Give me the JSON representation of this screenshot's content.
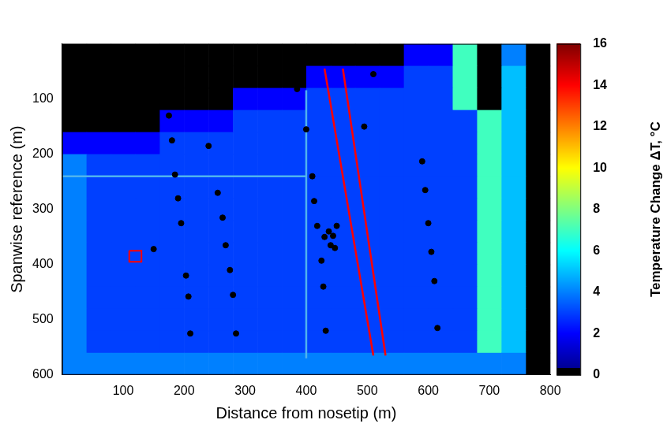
{
  "chart_data": {
    "type": "heatmap",
    "x_label": "Distance from nosetip (m)",
    "y_label": "Spanwise reference (m)",
    "xlim": [
      0,
      800
    ],
    "ylim": [
      600,
      0
    ],
    "xticks": [
      100,
      200,
      300,
      400,
      500,
      600,
      700,
      800
    ],
    "yticks": [
      100,
      200,
      300,
      400,
      500,
      600
    ],
    "grid": false,
    "cells": {
      "x": [
        20,
        60,
        100,
        140,
        180,
        220,
        260,
        300,
        340,
        380,
        420,
        460,
        500,
        540,
        580,
        620,
        660,
        700,
        740,
        780
      ],
      "y": [
        20,
        60,
        100,
        140,
        180,
        220,
        260,
        300,
        340,
        380,
        420,
        460,
        500,
        540,
        580
      ],
      "values": [
        [
          0,
          0,
          0,
          0,
          0,
          0,
          0,
          0,
          0,
          0,
          0,
          0,
          0,
          0,
          2,
          2,
          7,
          0,
          4,
          0
        ],
        [
          0,
          0,
          0,
          0,
          0,
          0,
          0,
          0,
          0,
          0,
          2,
          2,
          2,
          2,
          3,
          3,
          7,
          0,
          5,
          0
        ],
        [
          0,
          0,
          0,
          0,
          0,
          0,
          0,
          2,
          2,
          2,
          3,
          3,
          3,
          3,
          3,
          3,
          7,
          0,
          5,
          0
        ],
        [
          0,
          0,
          0,
          0,
          2,
          2,
          2,
          3,
          3,
          3,
          3,
          3,
          3,
          3,
          3,
          3,
          3,
          7,
          5,
          0
        ],
        [
          2,
          2,
          2,
          2,
          3,
          3,
          3,
          3,
          3,
          3,
          3,
          3,
          3,
          3,
          3,
          3,
          3,
          7,
          5,
          0
        ],
        [
          4,
          3,
          3,
          3,
          3,
          3,
          3,
          3,
          3,
          3,
          3,
          3,
          3,
          3,
          3,
          3,
          3,
          7,
          5,
          0
        ],
        [
          4,
          3,
          3,
          3,
          3,
          3,
          3,
          3,
          3,
          3,
          3,
          3,
          3,
          3,
          3,
          3,
          3,
          7,
          5,
          0
        ],
        [
          4,
          3,
          3,
          3,
          3,
          3,
          3,
          3,
          3,
          3,
          3,
          3,
          3,
          3,
          3,
          3,
          3,
          7,
          5,
          0
        ],
        [
          4,
          3,
          3,
          3,
          3,
          3,
          3,
          3,
          3,
          3,
          3,
          3,
          3,
          3,
          3,
          3,
          3,
          7,
          5,
          0
        ],
        [
          4,
          3,
          3,
          3,
          3,
          3,
          3,
          3,
          3,
          3,
          3,
          3,
          3,
          3,
          3,
          3,
          3,
          7,
          5,
          0
        ],
        [
          4,
          3,
          3,
          3,
          3,
          3,
          3,
          3,
          3,
          3,
          3,
          3,
          3,
          3,
          3,
          3,
          3,
          7,
          5,
          0
        ],
        [
          4,
          3,
          3,
          3,
          3,
          3,
          3,
          3,
          3,
          3,
          3,
          3,
          3,
          3,
          3,
          3,
          3,
          7,
          5,
          0
        ],
        [
          4,
          3,
          3,
          3,
          3,
          3,
          3,
          3,
          3,
          3,
          3,
          3,
          3,
          3,
          3,
          3,
          3,
          7,
          5,
          0
        ],
        [
          4,
          3,
          3,
          3,
          3,
          3,
          3,
          3,
          3,
          3,
          3,
          3,
          3,
          3,
          3,
          3,
          3,
          7,
          5,
          0
        ],
        [
          4,
          4,
          4,
          4,
          4,
          4,
          4,
          4,
          4,
          4,
          4,
          4,
          4,
          4,
          4,
          4,
          4,
          4,
          4,
          0
        ]
      ]
    },
    "colorbar": {
      "label": "Temperature Change ΔT, °C",
      "range": [
        0,
        16
      ],
      "ticks": [
        0,
        2,
        4,
        6,
        8,
        10,
        12,
        14,
        16
      ]
    },
    "markers": {
      "x": [
        175,
        180,
        185,
        190,
        195,
        150,
        203,
        207,
        210,
        240,
        255,
        263,
        268,
        275,
        280,
        285,
        385,
        400,
        410,
        413,
        418,
        425,
        428,
        432,
        430,
        437,
        444,
        450,
        440,
        447,
        510,
        495,
        590,
        595,
        600,
        605,
        610,
        615
      ],
      "y": [
        130,
        175,
        237,
        280,
        325,
        372,
        420,
        458,
        525,
        185,
        270,
        315,
        365,
        410,
        455,
        525,
        82,
        155,
        240,
        285,
        330,
        393,
        440,
        520,
        350,
        340,
        348,
        330,
        365,
        370,
        55,
        150,
        213,
        265,
        325,
        377,
        430,
        515
      ],
      "color": "#000000",
      "marker": "circle"
    },
    "lines": [
      {
        "x": [
          0,
          400
        ],
        "y": [
          240,
          240
        ],
        "color": "#4fb3ee"
      },
      {
        "x": [
          400,
          400
        ],
        "y": [
          84,
          570
        ],
        "color": "#4fb3ee"
      },
      {
        "x": [
          430,
          510
        ],
        "y": [
          45,
          565
        ],
        "color": "#ff0000"
      },
      {
        "x": [
          460,
          530
        ],
        "y": [
          45,
          565
        ],
        "color": "#ff0000"
      }
    ],
    "box": {
      "x": [
        110,
        130
      ],
      "y": [
        375,
        395
      ],
      "color": "#ff0000"
    }
  }
}
